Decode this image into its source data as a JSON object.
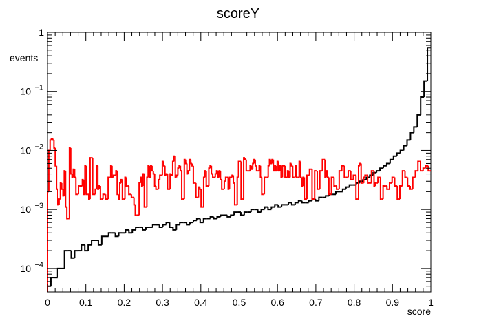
{
  "chart_data": {
    "type": "histogram",
    "title": "scoreY",
    "xlabel": "score",
    "ylabel": "events",
    "xlim": [
      0,
      1
    ],
    "ylim": [
      4e-05,
      1
    ],
    "yscale": "log",
    "grid": false,
    "legend": "none",
    "bin_width": 0.01,
    "x_ticks": [
      "0",
      "0.1",
      "0.2",
      "0.3",
      "0.4",
      "0.5",
      "0.6",
      "0.7",
      "0.8",
      "0.9",
      "1"
    ],
    "y_ticks": [
      {
        "value": 0.0001,
        "base": "10",
        "exp": "−4"
      },
      {
        "value": 0.001,
        "base": "10",
        "exp": "−3"
      },
      {
        "value": 0.01,
        "base": "10",
        "exp": "−2"
      },
      {
        "value": 0.1,
        "base": "10",
        "exp": "−1"
      },
      {
        "value": 1,
        "base": "1",
        "exp": ""
      }
    ],
    "series": [
      {
        "color": "#000000",
        "values": [
          5e-05,
          7e-05,
          7e-05,
          0.0001,
          0.0001,
          0.0002,
          0.0002,
          0.00015,
          0.0002,
          0.0002,
          0.00025,
          0.0002,
          0.00025,
          0.0003,
          0.0003,
          0.00025,
          0.00035,
          0.00035,
          0.0004,
          0.0004,
          0.00035,
          0.0004,
          0.0004,
          0.00045,
          0.0004,
          0.00045,
          0.0005,
          0.0005,
          0.00045,
          0.0005,
          0.0005,
          0.00055,
          0.00055,
          0.0005,
          0.00055,
          0.0006,
          0.0005,
          0.00045,
          0.00055,
          0.0006,
          0.0006,
          0.00055,
          0.0006,
          0.00065,
          0.0007,
          0.0006,
          0.0007,
          0.0007,
          0.00075,
          0.0007,
          0.00075,
          0.0008,
          0.0008,
          0.00075,
          0.0008,
          0.0009,
          0.0009,
          0.0008,
          0.0009,
          0.0009,
          0.001,
          0.001,
          0.0009,
          0.001,
          0.0011,
          0.001,
          0.0011,
          0.0012,
          0.0011,
          0.0012,
          0.0012,
          0.0013,
          0.0012,
          0.0013,
          0.0014,
          0.0013,
          0.0013,
          0.0014,
          0.0015,
          0.0014,
          0.0016,
          0.0016,
          0.0017,
          0.0018,
          0.0018,
          0.002,
          0.002,
          0.0022,
          0.0024,
          0.0026,
          0.0026,
          0.0028,
          0.003,
          0.0032,
          0.0035,
          0.0038,
          0.0042,
          0.0045,
          0.005,
          0.0055,
          0.006,
          0.007,
          0.008,
          0.009,
          0.01,
          0.012,
          0.015,
          0.02,
          0.025,
          0.04,
          0.08,
          0.15,
          0.55
        ]
      },
      {
        "color": "#ff0000",
        "values": [
          0.002,
          0.01,
          0.015,
          0.016,
          0.015,
          0.011,
          0.0055,
          0.0022,
          0.0012,
          0.0015,
          0.0028,
          0.0022,
          0.0017,
          0.0045,
          0.0011,
          0.0007,
          0.0007,
          0.011,
          0.004,
          0.0035,
          0.0048,
          0.0035,
          0.0018,
          0.0018,
          0.0025,
          0.0025,
          0.0025,
          0.0032,
          0.0018,
          0.0055,
          0.0018,
          0.0018,
          0.0015,
          0.0075,
          0.0075,
          0.0018,
          0.0018,
          0.0022,
          0.0055,
          0.0022,
          0.0025,
          0.0015,
          0.0015,
          0.0018,
          0.0018,
          0.0015,
          0.0015,
          0.0035,
          0.0035,
          0.0055,
          0.0035,
          0.0038,
          0.0038,
          0.0045,
          0.0018,
          0.0015,
          0.0028,
          0.0032,
          0.0015,
          0.0015,
          0.0035,
          0.0025,
          0.0025,
          0.0018,
          0.0018,
          0.0016,
          0.0016,
          0.0012,
          0.0008,
          0.0008,
          0.0008,
          0.0028,
          0.0035,
          0.0025,
          0.004,
          0.0011,
          0.0011,
          0.0035,
          0.0055,
          0.0035,
          0.0055,
          0.0045,
          0.004,
          0.0025,
          0.0022,
          0.0022,
          0.0032,
          0.0038,
          0.0038,
          0.0065,
          0.0055,
          0.0038,
          0.004,
          0.0022,
          0.0022,
          0.004,
          0.0038,
          0.0065,
          0.008,
          0.0035,
          0.0038,
          0.005,
          0.0055,
          0.0045,
          0.0015,
          0.0015,
          0.007,
          0.006,
          0.004,
          0.0045,
          0.007,
          0.006,
          0.0055,
          0.0028,
          0.0028,
          0.0016,
          0.0016,
          0.0024,
          0.0022,
          0.0011,
          0.0011,
          0.0035,
          0.0045,
          0.0025,
          0.0025,
          0.005,
          0.0055,
          0.004,
          0.0035,
          0.0035,
          0.004,
          0.0045,
          0.0035,
          0.0045,
          0.0032,
          0.0022,
          0.0022,
          0.003,
          0.0035,
          0.0035,
          0.0022,
          0.0035,
          0.0035,
          0.0038,
          0.0028,
          0.0012,
          0.0012,
          0.0035,
          0.0065,
          0.0065,
          0.0015,
          0.0015,
          0.0075,
          0.007,
          0.0045,
          0.0045,
          0.0045,
          0.0055,
          0.0048,
          0.006,
          0.007,
          0.0055,
          0.0045,
          0.0045,
          0.0055,
          0.0035,
          0.0018,
          0.0018,
          0.0035,
          0.0035,
          0.0035,
          0.0055,
          0.007,
          0.006,
          0.007,
          0.0045,
          0.0055,
          0.0045,
          0.0065,
          0.0045,
          0.0055,
          0.0035,
          0.0055,
          0.0055,
          0.0035,
          0.0035,
          0.0045,
          0.0035,
          0.006,
          0.0055,
          0.0035,
          0.0035,
          0.0055,
          0.0035,
          0.0035,
          0.0065,
          0.0035,
          0.0025,
          0.0035,
          0.0015,
          0.0015,
          0.0038,
          0.0038,
          0.0048,
          0.0048,
          0.0015,
          0.0015,
          0.0045,
          0.0045,
          0.0022,
          0.0022,
          0.0045,
          0.0045,
          0.007,
          0.007,
          0.0035,
          0.0045,
          0.0035,
          0.0018,
          0.0018,
          0.0035,
          0.0035,
          0.0025,
          0.0025,
          0.0022,
          0.0022,
          0.0045,
          0.0045,
          0.0055,
          0.0055,
          0.0035,
          0.0035,
          0.0035,
          0.0045,
          0.0045,
          0.0032,
          0.0032,
          0.0038,
          0.0038,
          0.0015,
          0.0015,
          0.0055,
          0.006,
          0.0028,
          0.0028,
          0.0035,
          0.0038,
          0.0038,
          0.0028,
          0.0028,
          0.0028,
          0.0045,
          0.0045,
          0.0025,
          0.0028,
          0.0028,
          0.0035,
          0.0035,
          0.0015,
          0.0015,
          0.0025,
          0.0025,
          0.0025,
          0.0022,
          0.0022,
          0.0028,
          0.0028,
          0.0035,
          0.0035,
          0.0025,
          0.0025,
          0.0015,
          0.0015,
          0.0025,
          0.0025,
          0.0045,
          0.0045,
          0.0035,
          0.0035,
          0.0025,
          0.0025,
          0.0022,
          0.0022,
          0.0035,
          0.0035,
          0.0045,
          0.0045,
          0.0065,
          0.0065,
          0.0045,
          0.0045,
          0.005,
          0.005,
          0.0055,
          0.0055,
          0.0045,
          0.0045
        ]
      }
    ]
  }
}
